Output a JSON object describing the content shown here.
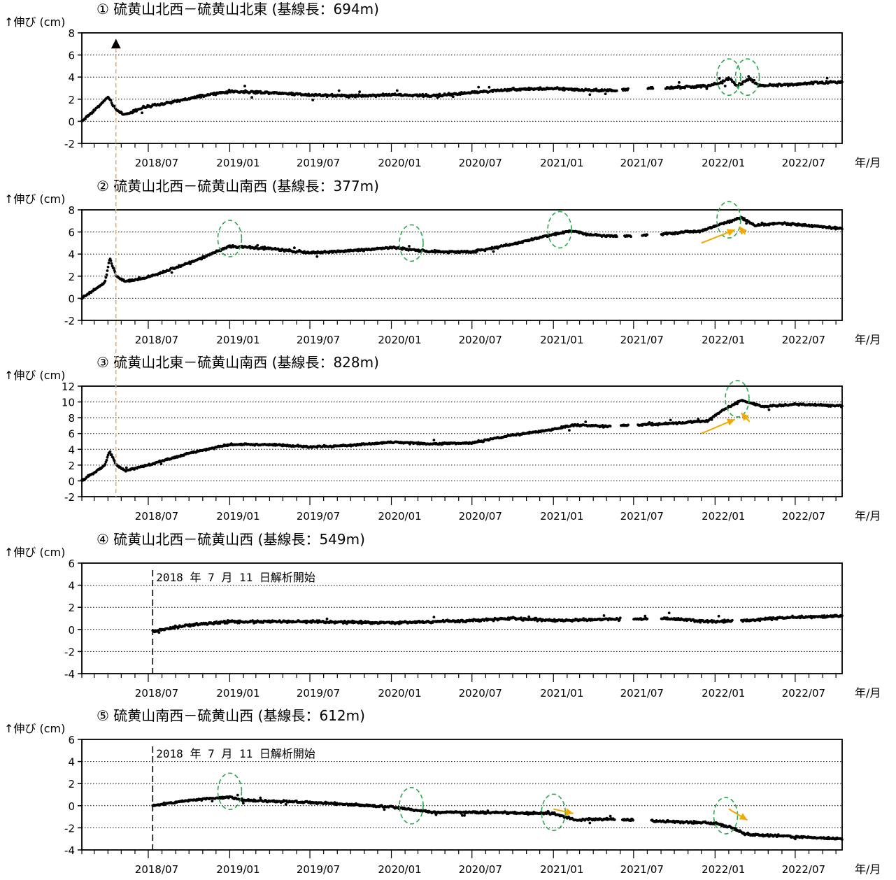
{
  "x_unit_label": "年/月",
  "y_unit_label": "↑伸び (cm)",
  "colors": {
    "points": "#000000",
    "circle": "#2aa84a",
    "arrow": "#f2a900",
    "eruption_line": "#f4a460",
    "grid": "#000000"
  },
  "chart_data": [
    {
      "type": "scatter",
      "id": "p1",
      "title": "① 硫黄山北西－硫黄山北東 (基線長：694m)",
      "xlabel": "年/月",
      "ylabel": "↑伸び (cm)",
      "ylim": [
        -2,
        8
      ],
      "yticks": [
        -2,
        0,
        2,
        4,
        6,
        8
      ],
      "xlim": [
        "2018-02-01",
        "2022-10-15"
      ],
      "xticks": [
        "2018/07",
        "2019/01",
        "2019/07",
        "2020/01",
        "2020/07",
        "2021/01",
        "2021/07",
        "2022/01",
        "2022/07"
      ],
      "grid": "horizontal dotted",
      "eruption_marker": "▲",
      "analysis_start_note": "",
      "series_knots": [
        [
          "2018-02-01",
          0.0
        ],
        [
          "2018-03-15",
          1.5
        ],
        [
          "2018-04-01",
          2.2
        ],
        [
          "2018-04-20",
          1.0
        ],
        [
          "2018-05-10",
          0.6
        ],
        [
          "2018-06-15",
          1.2
        ],
        [
          "2018-09-01",
          1.8
        ],
        [
          "2018-11-15",
          2.4
        ],
        [
          "2019-01-01",
          2.7
        ],
        [
          "2019-04-01",
          2.6
        ],
        [
          "2019-07-01",
          2.4
        ],
        [
          "2019-10-01",
          2.3
        ],
        [
          "2020-01-01",
          2.4
        ],
        [
          "2020-04-01",
          2.3
        ],
        [
          "2020-07-01",
          2.6
        ],
        [
          "2020-10-01",
          2.9
        ],
        [
          "2021-01-01",
          2.95
        ],
        [
          "2021-04-15",
          2.8
        ],
        [
          "2021-05-20",
          2.8
        ],
        [
          "2021-09-01",
          3.0
        ],
        [
          "2021-12-20",
          3.2
        ],
        [
          "2022-01-20",
          3.6
        ],
        [
          "2022-02-01",
          3.9
        ],
        [
          "2022-02-20",
          3.2
        ],
        [
          "2022-03-10",
          3.6
        ],
        [
          "2022-03-20",
          3.9
        ],
        [
          "2022-04-10",
          3.2
        ],
        [
          "2022-06-01",
          3.3
        ],
        [
          "2022-10-15",
          3.6
        ]
      ],
      "gaps": [
        [
          "2021-05-25",
          "2021-06-05"
        ],
        [
          "2021-06-20",
          "2021-08-01"
        ],
        [
          "2021-08-15",
          "2021-09-10"
        ]
      ],
      "noise": 0.12,
      "circles": [
        [
          "2022-02-01",
          4.0
        ],
        [
          "2022-03-15",
          4.0
        ]
      ],
      "arrows": []
    },
    {
      "type": "scatter",
      "id": "p2",
      "title": "② 硫黄山北西－硫黄山南西 (基線長：377m)",
      "xlabel": "年/月",
      "ylabel": "↑伸び (cm)",
      "ylim": [
        -2,
        8
      ],
      "yticks": [
        -2,
        0,
        2,
        4,
        6,
        8
      ],
      "xlim": [
        "2018-02-01",
        "2022-10-15"
      ],
      "xticks": [
        "2018/07",
        "2019/01",
        "2019/07",
        "2020/01",
        "2020/07",
        "2021/01",
        "2021/07",
        "2022/01",
        "2022/07"
      ],
      "grid": "horizontal dotted",
      "eruption_marker": "",
      "analysis_start_note": "",
      "series_knots": [
        [
          "2018-02-01",
          0.0
        ],
        [
          "2018-03-25",
          1.4
        ],
        [
          "2018-04-05",
          3.6
        ],
        [
          "2018-04-20",
          2.0
        ],
        [
          "2018-05-10",
          1.5
        ],
        [
          "2018-07-01",
          1.9
        ],
        [
          "2018-10-01",
          3.2
        ],
        [
          "2019-01-01",
          4.7
        ],
        [
          "2019-04-01",
          4.5
        ],
        [
          "2019-07-01",
          4.1
        ],
        [
          "2019-10-01",
          4.3
        ],
        [
          "2020-01-01",
          4.6
        ],
        [
          "2020-02-15",
          4.4
        ],
        [
          "2020-04-01",
          4.2
        ],
        [
          "2020-07-01",
          4.2
        ],
        [
          "2020-10-01",
          4.9
        ],
        [
          "2021-01-01",
          5.8
        ],
        [
          "2021-02-15",
          6.1
        ],
        [
          "2021-03-15",
          5.8
        ],
        [
          "2021-05-25",
          5.6
        ],
        [
          "2021-09-01",
          5.8
        ],
        [
          "2021-12-01",
          6.1
        ],
        [
          "2022-01-20",
          6.8
        ],
        [
          "2022-03-01",
          7.3
        ],
        [
          "2022-04-01",
          6.6
        ],
        [
          "2022-06-01",
          6.8
        ],
        [
          "2022-10-15",
          6.3
        ]
      ],
      "gaps": [
        [
          "2021-05-25",
          "2021-06-10"
        ],
        [
          "2021-06-25",
          "2021-07-20"
        ],
        [
          "2021-08-01",
          "2021-09-01"
        ]
      ],
      "noise": 0.1,
      "circles": [
        [
          "2019-01-01",
          5.4
        ],
        [
          "2020-02-15",
          5.0
        ],
        [
          "2021-01-15",
          6.2
        ],
        [
          "2022-02-01",
          7.1
        ]
      ],
      "arrows": [
        [
          [
            "2021-12-01",
            5.0
          ],
          [
            "2022-02-15",
            6.2
          ]
        ],
        [
          [
            "2022-03-10",
            5.8
          ],
          [
            "2022-02-25",
            6.5
          ]
        ]
      ]
    },
    {
      "type": "scatter",
      "id": "p3",
      "title": "③ 硫黄山北東－硫黄山南西 (基線長：828m)",
      "xlabel": "年/月",
      "ylabel": "↑伸び (cm)",
      "ylim": [
        -2,
        12
      ],
      "yticks": [
        -2,
        0,
        2,
        4,
        6,
        8,
        10,
        12
      ],
      "xlim": [
        "2018-02-01",
        "2022-10-15"
      ],
      "xticks": [
        "2018/07",
        "2019/01",
        "2019/07",
        "2020/01",
        "2020/07",
        "2021/01",
        "2021/07",
        "2022/01",
        "2022/07"
      ],
      "grid": "horizontal dotted",
      "eruption_marker": "",
      "analysis_start_note": "",
      "series_knots": [
        [
          "2018-02-01",
          0.0
        ],
        [
          "2018-03-25",
          2.0
        ],
        [
          "2018-04-05",
          3.8
        ],
        [
          "2018-04-20",
          2.0
        ],
        [
          "2018-05-10",
          1.3
        ],
        [
          "2018-07-01",
          2.0
        ],
        [
          "2018-10-01",
          3.5
        ],
        [
          "2019-01-01",
          4.6
        ],
        [
          "2019-04-01",
          4.6
        ],
        [
          "2019-07-01",
          4.3
        ],
        [
          "2019-10-01",
          4.5
        ],
        [
          "2020-01-01",
          4.9
        ],
        [
          "2020-04-01",
          4.7
        ],
        [
          "2020-07-01",
          4.8
        ],
        [
          "2020-10-01",
          5.8
        ],
        [
          "2021-01-01",
          6.5
        ],
        [
          "2021-02-15",
          7.1
        ],
        [
          "2021-05-01",
          6.9
        ],
        [
          "2021-09-01",
          7.2
        ],
        [
          "2021-12-15",
          7.6
        ],
        [
          "2022-01-20",
          9.0
        ],
        [
          "2022-03-01",
          10.2
        ],
        [
          "2022-04-20",
          9.4
        ],
        [
          "2022-07-01",
          9.7
        ],
        [
          "2022-10-15",
          9.5
        ]
      ],
      "gaps": [
        [
          "2021-05-10",
          "2021-06-01"
        ],
        [
          "2021-06-20",
          "2021-07-10"
        ]
      ],
      "noise": 0.12,
      "circles": [
        [
          "2022-02-20",
          10.4
        ]
      ],
      "arrows": [
        [
          [
            "2021-12-01",
            6.0
          ],
          [
            "2022-02-15",
            7.8
          ]
        ],
        [
          [
            "2022-03-20",
            7.5
          ],
          [
            "2022-03-01",
            8.6
          ]
        ]
      ]
    },
    {
      "type": "scatter",
      "id": "p4",
      "title": "④ 硫黄山北西－硫黄山西 (基線長：549m)",
      "xlabel": "年/月",
      "ylabel": "↑伸び (cm)",
      "ylim": [
        -4,
        6
      ],
      "yticks": [
        -4,
        -2,
        0,
        2,
        4,
        6
      ],
      "xlim": [
        "2018-02-01",
        "2022-10-15"
      ],
      "xticks": [
        "2018/07",
        "2019/01",
        "2019/07",
        "2020/01",
        "2020/07",
        "2021/01",
        "2021/07",
        "2022/01",
        "2022/07"
      ],
      "grid": "horizontal dotted",
      "eruption_marker": "",
      "analysis_start_note": "2018 年 7 月 11 日解析開始",
      "analysis_start": "2018-07-11",
      "series_knots": [
        [
          "2018-07-11",
          -0.2
        ],
        [
          "2018-10-01",
          0.4
        ],
        [
          "2019-01-01",
          0.7
        ],
        [
          "2019-07-01",
          0.7
        ],
        [
          "2020-01-01",
          0.6
        ],
        [
          "2020-07-01",
          0.8
        ],
        [
          "2020-10-01",
          1.0
        ],
        [
          "2021-01-01",
          0.8
        ],
        [
          "2021-05-01",
          0.9
        ],
        [
          "2021-09-01",
          1.0
        ],
        [
          "2022-01-01",
          0.7
        ],
        [
          "2022-03-01",
          0.8
        ],
        [
          "2022-07-01",
          1.1
        ],
        [
          "2022-10-15",
          1.2
        ]
      ],
      "gaps": [
        [
          "2021-06-01",
          "2021-07-01"
        ],
        [
          "2021-08-01",
          "2021-09-01"
        ],
        [
          "2022-02-10",
          "2022-03-01"
        ]
      ],
      "noise": 0.12,
      "circles": [],
      "arrows": []
    },
    {
      "type": "scatter",
      "id": "p5",
      "title": "⑤ 硫黄山南西－硫黄山西 (基線長：612m)",
      "xlabel": "年/月",
      "ylabel": "↑伸び (cm)",
      "ylim": [
        -4,
        6
      ],
      "yticks": [
        -4,
        -2,
        0,
        2,
        4,
        6
      ],
      "xlim": [
        "2018-02-01",
        "2022-10-15"
      ],
      "xticks": [
        "2018/07",
        "2019/01",
        "2019/07",
        "2020/01",
        "2020/07",
        "2021/01",
        "2021/07",
        "2022/01",
        "2022/07"
      ],
      "grid": "horizontal dotted",
      "eruption_marker": "",
      "analysis_start_note": "2018 年 7 月 11 日解析開始",
      "analysis_start": "2018-07-11",
      "series_knots": [
        [
          "2018-07-11",
          0.0
        ],
        [
          "2018-10-01",
          0.5
        ],
        [
          "2019-01-01",
          0.8
        ],
        [
          "2019-02-01",
          0.5
        ],
        [
          "2019-07-01",
          0.3
        ],
        [
          "2020-01-01",
          -0.1
        ],
        [
          "2020-04-01",
          -0.6
        ],
        [
          "2020-07-01",
          -0.6
        ],
        [
          "2021-01-01",
          -0.7
        ],
        [
          "2021-02-20",
          -1.3
        ],
        [
          "2021-05-01",
          -1.2
        ],
        [
          "2021-09-01",
          -1.4
        ],
        [
          "2022-01-01",
          -1.6
        ],
        [
          "2022-02-10",
          -2.0
        ],
        [
          "2022-03-10",
          -2.6
        ],
        [
          "2022-07-01",
          -2.8
        ],
        [
          "2022-10-15",
          -3.0
        ]
      ],
      "gaps": [
        [
          "2021-05-20",
          "2021-06-05"
        ],
        [
          "2021-07-01",
          "2021-08-10"
        ]
      ],
      "noise": 0.1,
      "circles": [
        [
          "2019-01-01",
          1.3
        ],
        [
          "2020-02-15",
          0.0
        ],
        [
          "2021-01-01",
          -0.6
        ],
        [
          "2022-01-25",
          -0.9
        ]
      ],
      "arrows": [
        [
          [
            "2021-01-01",
            -0.3
          ],
          [
            "2021-02-15",
            -0.7
          ]
        ],
        [
          [
            "2022-02-01",
            -0.3
          ],
          [
            "2022-03-15",
            -1.3
          ]
        ]
      ]
    }
  ]
}
